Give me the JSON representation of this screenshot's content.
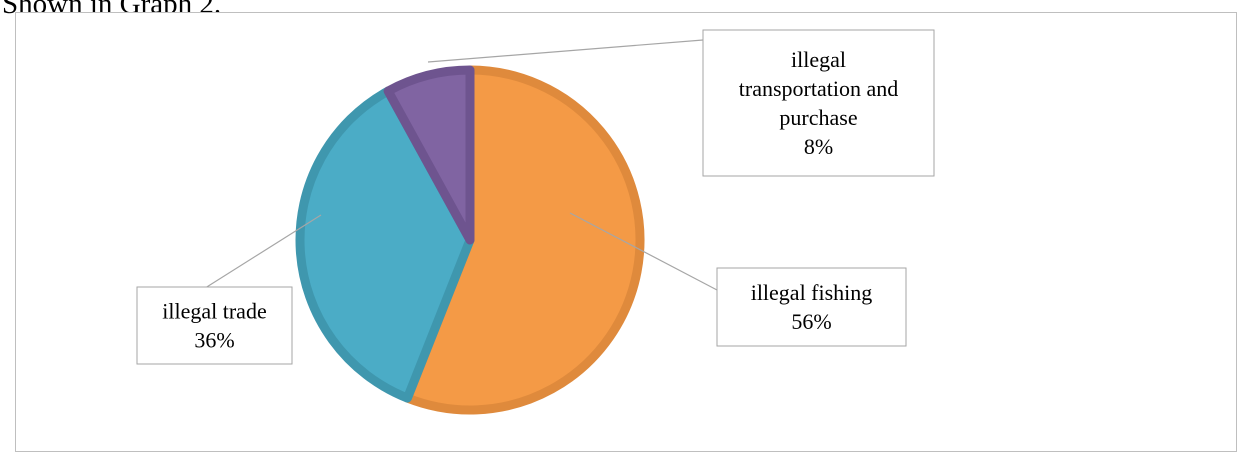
{
  "page_text": "Shown in Graph 2.",
  "chart_data": {
    "type": "pie",
    "slices": [
      {
        "label": "illegal fishing",
        "value": 56,
        "pct_label": "56%",
        "color": "#F49A46",
        "edge": "#DF8A3C",
        "label_lines": [
          "illegal fishing"
        ]
      },
      {
        "label": "illegal trade",
        "value": 36,
        "pct_label": "36%",
        "color": "#4BACC6",
        "edge": "#3F97AE",
        "label_lines": [
          "illegal trade"
        ]
      },
      {
        "label": "illegal transportation and purchase",
        "value": 8,
        "pct_label": "8%",
        "color": "#8064A2",
        "edge": "#6E548F",
        "label_lines": [
          "illegal",
          "transportation and",
          "purchase"
        ]
      }
    ],
    "start_angle_deg": 0,
    "direction": "clockwise",
    "legend": "none"
  }
}
